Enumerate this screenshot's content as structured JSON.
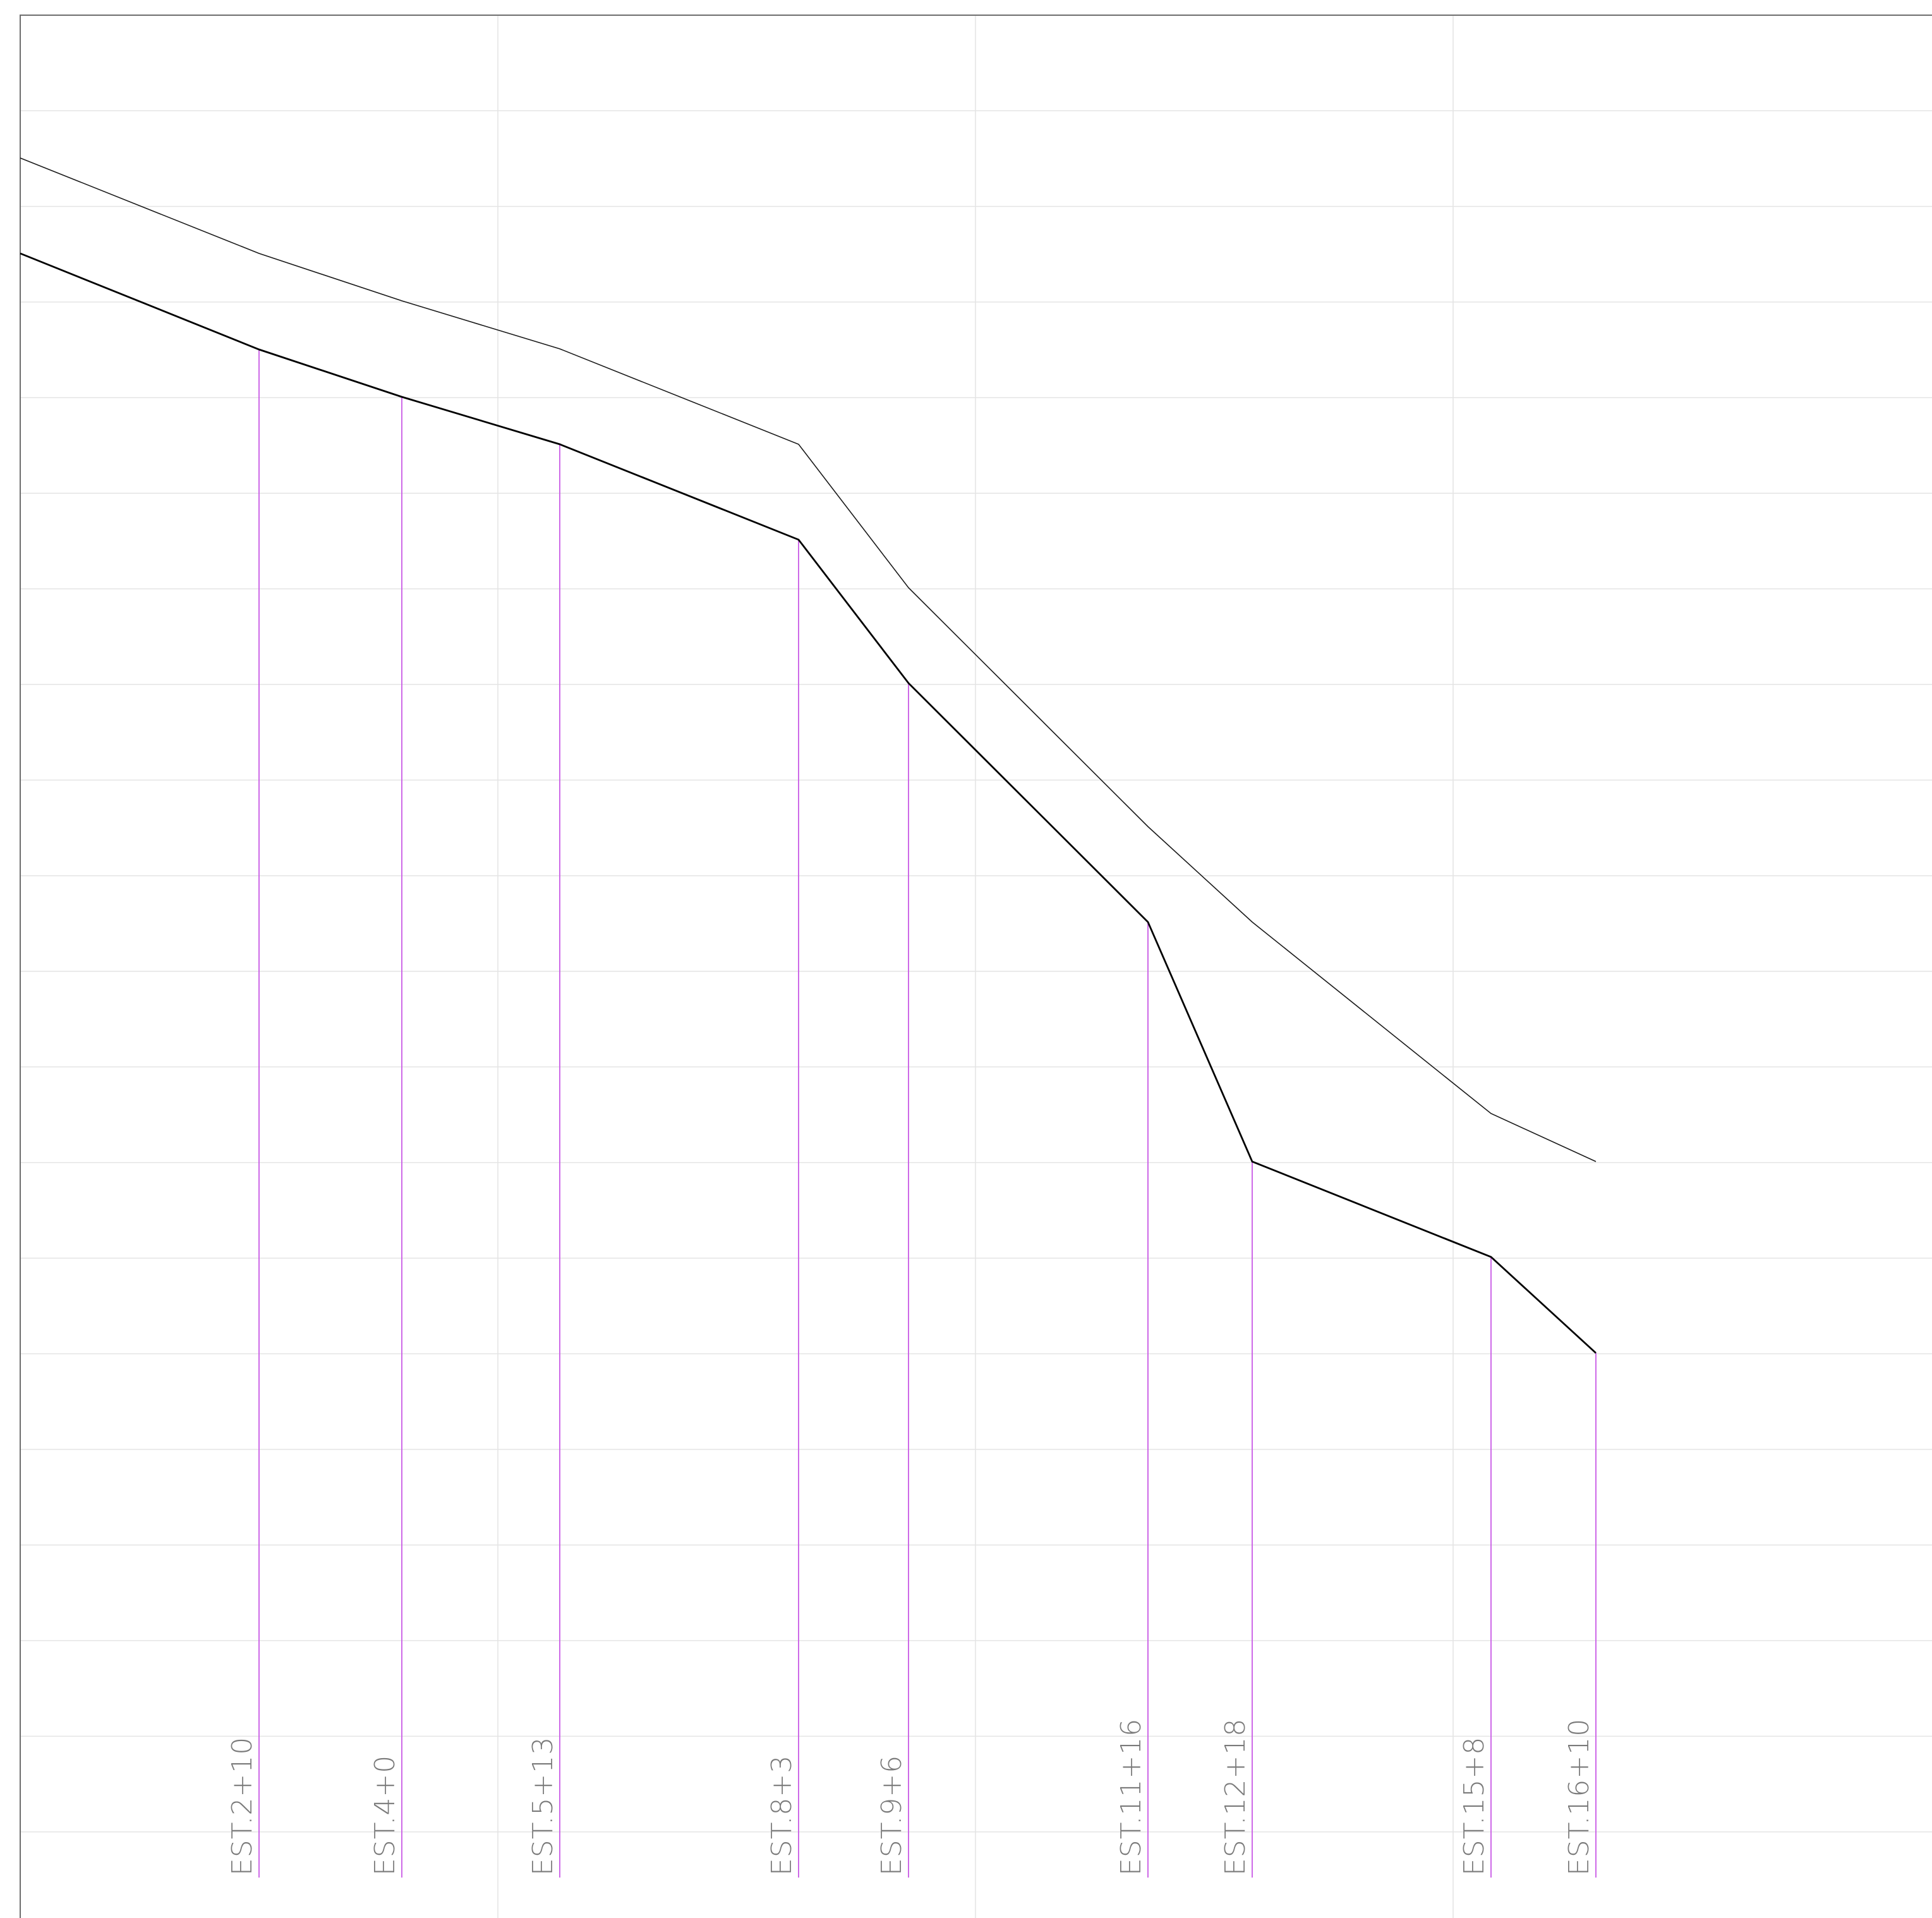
{
  "stations": [
    {
      "label": "EST.2+10"
    },
    {
      "label": "EST.4+0"
    },
    {
      "label": "EST.5+13"
    },
    {
      "label": "EST.8+3"
    },
    {
      "label": "EST.9+6"
    },
    {
      "label": "EST.11+16"
    },
    {
      "label": "EST.12+18"
    },
    {
      "label": "EST.15+8"
    },
    {
      "label": "EST.16+10"
    }
  ],
  "colors": {
    "station_line": "#c85ae6",
    "profile_line": "#000000",
    "ground_line": "#1a1a1a",
    "grid": "#e4e4e4",
    "frame": "#6d6d6d",
    "label_text": "#7a7a7a"
  }
}
